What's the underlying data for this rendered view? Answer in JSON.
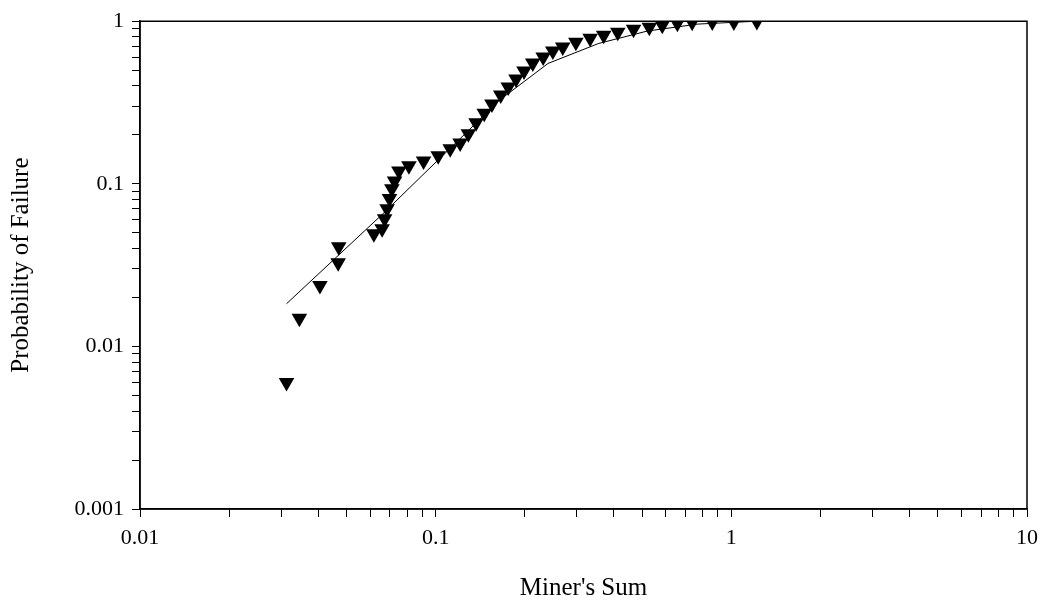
{
  "chart_data": {
    "type": "scatter",
    "xlabel": "Miner's Sum",
    "ylabel": "Probability of Failure",
    "log": "xy",
    "grid": false,
    "legend": false,
    "xlim": [
      0.01,
      10
    ],
    "ylim": [
      0.001,
      1
    ],
    "xticks": [
      0.01,
      {
        "value": 0.02,
        "label": null
      },
      {
        "value": 0.03,
        "label": null
      },
      {
        "value": 0.04,
        "label": null
      },
      {
        "value": 0.05,
        "label": null
      },
      {
        "value": 0.06,
        "label": null
      },
      {
        "value": 0.07,
        "label": null
      },
      {
        "value": 0.08,
        "label": null
      },
      {
        "value": 0.09,
        "label": null
      },
      0.1,
      {
        "value": 0.2,
        "label": null
      },
      {
        "value": 0.3,
        "label": null
      },
      {
        "value": 0.4,
        "label": null
      },
      {
        "value": 0.5,
        "label": null
      },
      {
        "value": 0.6,
        "label": null
      },
      {
        "value": 0.7,
        "label": null
      },
      {
        "value": 0.8,
        "label": null
      },
      {
        "value": 0.9,
        "label": null
      },
      1,
      {
        "value": 2,
        "label": null
      },
      {
        "value": 3,
        "label": null
      },
      {
        "value": 4,
        "label": null
      },
      {
        "value": 5,
        "label": null
      },
      {
        "value": 6,
        "label": null
      },
      {
        "value": 7,
        "label": null
      },
      {
        "value": 8,
        "label": null
      },
      {
        "value": 9,
        "label": null
      },
      10
    ],
    "yticks": [
      0.001,
      {
        "value": 0.002,
        "label": null
      },
      {
        "value": 0.003,
        "label": null
      },
      {
        "value": 0.004,
        "label": null
      },
      {
        "value": 0.005,
        "label": null
      },
      {
        "value": 0.006,
        "label": null
      },
      {
        "value": 0.007,
        "label": null
      },
      {
        "value": 0.008,
        "label": null
      },
      {
        "value": 0.009,
        "label": null
      },
      0.01,
      {
        "value": 0.02,
        "label": null
      },
      {
        "value": 0.03,
        "label": null
      },
      {
        "value": 0.04,
        "label": null
      },
      {
        "value": 0.05,
        "label": null
      },
      {
        "value": 0.06,
        "label": null
      },
      {
        "value": 0.07,
        "label": null
      },
      {
        "value": 0.08,
        "label": null
      },
      {
        "value": 0.09,
        "label": null
      },
      0.1,
      {
        "value": 0.2,
        "label": null
      },
      {
        "value": 0.3,
        "label": null
      },
      {
        "value": 0.4,
        "label": null
      },
      {
        "value": 0.5,
        "label": null
      },
      {
        "value": 0.6,
        "label": null
      },
      {
        "value": 0.7,
        "label": null
      },
      {
        "value": 0.8,
        "label": null
      },
      {
        "value": 0.9,
        "label": null
      },
      1
    ],
    "series": [
      {
        "color": "#000000",
        "marker": "triangle",
        "x": [
          0.0313,
          0.0346,
          0.0406,
          0.0468,
          0.047,
          0.0618,
          0.0659,
          0.0672,
          0.0685,
          0.0698,
          0.0711,
          0.0726,
          0.0751,
          0.0812,
          0.091,
          0.102,
          0.112,
          0.121,
          0.129,
          0.137,
          0.146,
          0.155,
          0.166,
          0.176,
          0.187,
          0.199,
          0.213,
          0.231,
          0.249,
          0.269,
          0.298,
          0.333,
          0.37,
          0.413,
          0.467,
          0.528,
          0.584,
          0.657,
          0.737,
          0.862,
          1.02,
          1.22
        ],
        "values": [
          0.006,
          0.0149,
          0.0237,
          0.0327,
          0.041,
          0.0493,
          0.053,
          0.061,
          0.0702,
          0.0811,
          0.0932,
          0.104,
          0.12,
          0.129,
          0.138,
          0.149,
          0.164,
          0.178,
          0.203,
          0.237,
          0.272,
          0.31,
          0.352,
          0.394,
          0.441,
          0.494,
          0.553,
          0.602,
          0.655,
          0.693,
          0.743,
          0.786,
          0.821,
          0.856,
          0.893,
          0.919,
          0.945,
          0.972,
          0.986,
          0.99,
          0.99,
          0.995
        ]
      },
      {
        "type": "line",
        "marker": "none",
        "color": "#000000",
        "x": [
          0.0313,
          0.0669,
          0.0898,
          0.119,
          0.163,
          0.24,
          0.356,
          0.52,
          0.77,
          1.22
        ],
        "values": [
          0.0183,
          0.0664,
          0.112,
          0.184,
          0.323,
          0.55,
          0.73,
          0.87,
          0.96,
          1.0
        ]
      }
    ]
  }
}
